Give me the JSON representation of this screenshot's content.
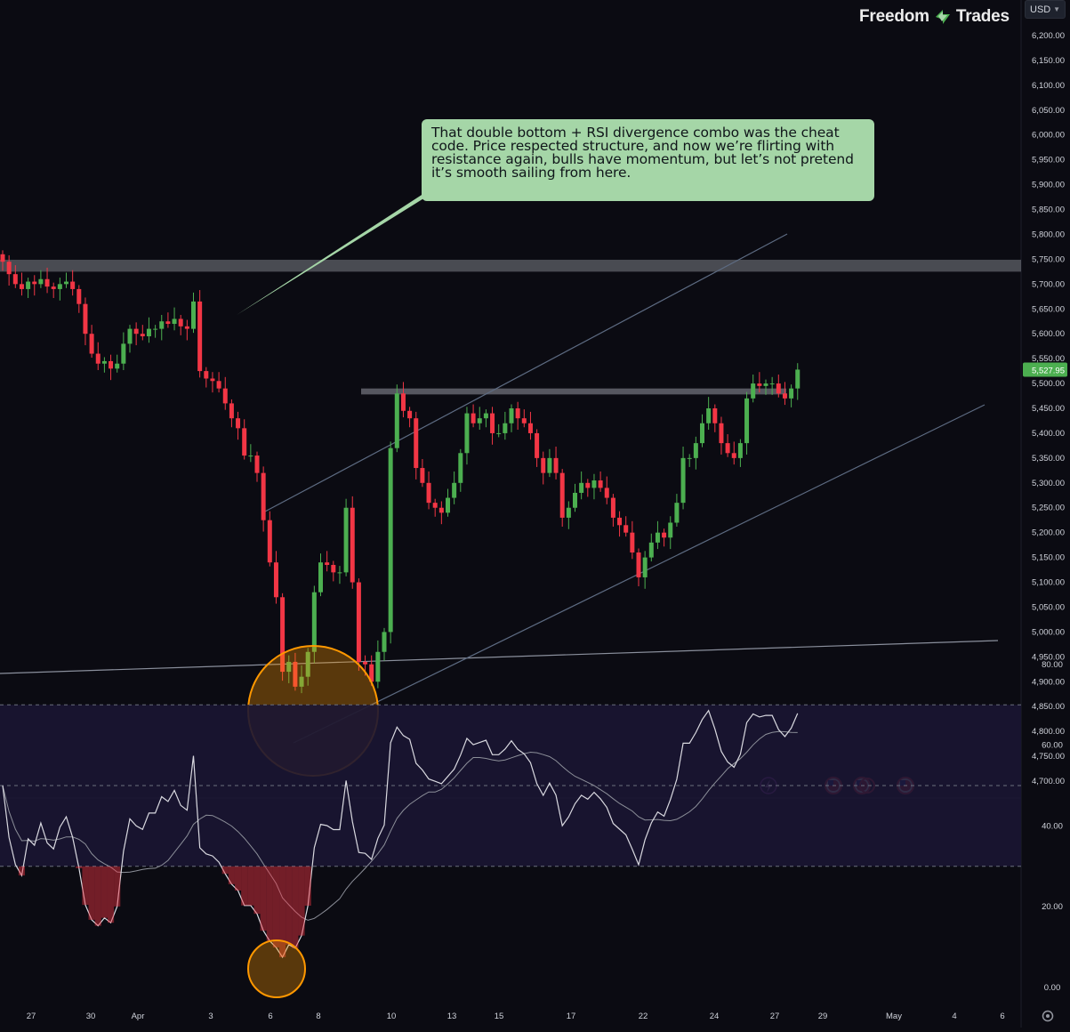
{
  "brand": {
    "name_left": "Freedom",
    "name_right": "Trades"
  },
  "currency": {
    "label": "USD"
  },
  "annotation": {
    "text": "That double bottom + RSI divergence combo was the cheat code. Price respected structure, and now we’re flirting with resistance again, bulls have momentum, but let’s not pretend it’s smooth sailing from here."
  },
  "colors": {
    "background": "#0b0b12",
    "up_candle": "#4caf50",
    "down_candle": "#f23645",
    "annotation_bg": "#a5d6a7",
    "last_price_bg": "#4caf50",
    "highlight_circle": "#ff9800",
    "zone": "#9598a1"
  },
  "icons": [
    "lightning-icon",
    "us-flag-icon",
    "us-flag-icon",
    "us-flag-icon",
    "settings-gear-icon"
  ],
  "chart_data": [
    {
      "type": "candlestick",
      "ylim": [
        4675,
        6230
      ],
      "yticks": [
        "6,200.00",
        "6,150.00",
        "6,100.00",
        "6,050.00",
        "6,000.00",
        "5,950.00",
        "5,900.00",
        "5,850.00",
        "5,800.00",
        "5,750.00",
        "5,700.00",
        "5,650.00",
        "5,600.00",
        "5,550.00",
        "5,500.00",
        "5,450.00",
        "5,400.00",
        "5,350.00",
        "5,300.00",
        "5,250.00",
        "5,200.00",
        "5,150.00",
        "5,100.00",
        "5,050.00",
        "5,000.00",
        "4,950.00",
        "4,900.00",
        "4,850.00",
        "4,800.00",
        "4,750.00",
        "4,700.00"
      ],
      "last_price": "5,527.95",
      "xticks": [
        "27",
        "30",
        "Apr",
        "3",
        "6",
        "8",
        "10",
        "13",
        "15",
        "17",
        "22",
        "24",
        "27",
        "29",
        "May",
        "4",
        "6"
      ],
      "close": [
        5745,
        5720,
        5700,
        5690,
        5705,
        5700,
        5710,
        5695,
        5690,
        5700,
        5705,
        5690,
        5660,
        5600,
        5560,
        5540,
        5545,
        5530,
        5540,
        5580,
        5610,
        5600,
        5595,
        5610,
        5610,
        5625,
        5620,
        5630,
        5615,
        5610,
        5665,
        5525,
        5510,
        5505,
        5490,
        5460,
        5430,
        5410,
        5355,
        5355,
        5320,
        5225,
        5140,
        5070,
        4920,
        4940,
        4890,
        4910,
        4960,
        5080,
        5140,
        5135,
        5120,
        5120,
        5250,
        5100,
        4940,
        4935,
        4900,
        4960,
        5000,
        5370,
        5480,
        5445,
        5430,
        5330,
        5300,
        5260,
        5250,
        5240,
        5270,
        5300,
        5360,
        5440,
        5420,
        5430,
        5440,
        5400,
        5400,
        5420,
        5450,
        5430,
        5420,
        5400,
        5350,
        5320,
        5350,
        5320,
        5230,
        5250,
        5280,
        5300,
        5290,
        5305,
        5290,
        5270,
        5230,
        5215,
        5200,
        5160,
        5110,
        5150,
        5180,
        5200,
        5190,
        5220,
        5260,
        5350,
        5350,
        5380,
        5420,
        5450,
        5420,
        5380,
        5360,
        5350,
        5380,
        5470,
        5500,
        5495,
        5500,
        5500,
        5480,
        5470,
        5490,
        5527.95
      ],
      "rsi": {
        "ylim": [
          -5,
          90
        ],
        "yticks": [
          "80.00",
          "60.00",
          "40.00",
          "20.00",
          "0.00"
        ],
        "bands": [
          70,
          50,
          30
        ]
      }
    }
  ]
}
